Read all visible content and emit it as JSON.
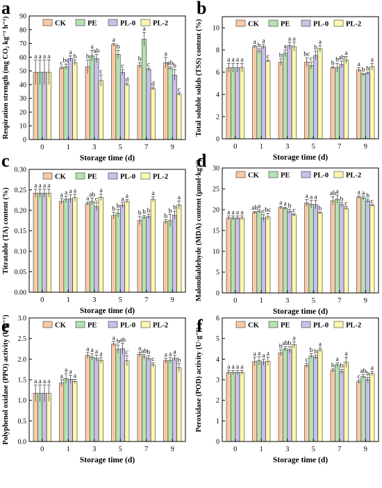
{
  "colors": {
    "CK": "#F9C9A6",
    "PE": "#B4E2B2",
    "PL-0": "#C9BFE8",
    "PL-2": "#FDF8AE",
    "stroke": "#333333"
  },
  "chart_data": [
    {
      "type": "bar",
      "panel": "a",
      "xlabel": "Storage time (d)",
      "ylabel": "Respiration strength (mg CO₂ kg⁻¹ h⁻¹)",
      "ylim": [
        0,
        90
      ],
      "yticks": [
        0,
        10,
        20,
        30,
        40,
        50,
        60,
        70,
        80,
        90
      ],
      "yticklabels": [
        "0",
        "10",
        "20",
        "30",
        "40",
        "50",
        "60",
        "70",
        "80",
        "90"
      ],
      "categories": [
        "0",
        "1",
        "3",
        "5",
        "7",
        "9"
      ],
      "legend": [
        "CK",
        "PE",
        "PL-0",
        "PL-2"
      ],
      "legend_position": "top",
      "series": [
        {
          "name": "CK",
          "values": [
            49,
            52,
            53,
            69,
            54,
            56
          ],
          "errors": [
            9,
            1,
            5,
            1,
            2,
            4
          ],
          "letters": [
            "a",
            "c",
            "b",
            "a",
            "b",
            "a"
          ]
        },
        {
          "name": "PE",
          "values": [
            49,
            53,
            61,
            62,
            73,
            52
          ],
          "errors": [
            9,
            2,
            4,
            3,
            5,
            1
          ],
          "letters": [
            "a",
            "bc",
            "a",
            "b",
            "a",
            "ab"
          ]
        },
        {
          "name": "PL-0",
          "values": [
            49,
            59,
            59,
            49,
            51,
            47
          ],
          "errors": [
            9,
            2,
            3,
            2,
            1,
            4
          ],
          "letters": [
            "a",
            "a",
            "ab",
            "c",
            "c",
            "b"
          ]
        },
        {
          "name": "PL-2",
          "values": [
            49,
            56,
            43,
            40,
            37,
            33
          ],
          "errors": [
            9,
            2,
            4,
            1,
            1,
            1
          ],
          "letters": [
            "a",
            "b",
            "c",
            "d",
            "d",
            "c"
          ]
        }
      ]
    },
    {
      "type": "bar",
      "panel": "b",
      "xlabel": "Storage time (d)",
      "ylabel": "Total soluble solids (TSS) content (%)",
      "ylim": [
        0,
        11
      ],
      "yticks": [
        0,
        2,
        4,
        6,
        8,
        10
      ],
      "yticklabels": [
        "0",
        "2",
        "4",
        "6",
        "8",
        "10"
      ],
      "categories": [
        "0",
        "1",
        "3",
        "5",
        "7",
        "9"
      ],
      "legend": [
        "CK",
        "PE",
        "PL-0",
        "PL-2"
      ],
      "legend_position": "top",
      "series": [
        {
          "name": "CK",
          "values": [
            6.4,
            8.3,
            6.9,
            6.9,
            6.4,
            6.2
          ],
          "errors": [
            0.4,
            0.1,
            0.3,
            0.4,
            0.1,
            0.2
          ],
          "letters": [
            "a",
            "a",
            "b",
            "bc",
            "b",
            "a"
          ]
        },
        {
          "name": "PE",
          "values": [
            6.4,
            7.9,
            7.7,
            6.6,
            6.4,
            5.8
          ],
          "errors": [
            0.4,
            0.2,
            0.3,
            0.3,
            0.4,
            0.1
          ],
          "letters": [
            "a",
            "b",
            "a",
            "c",
            "b",
            "b"
          ]
        },
        {
          "name": "PL-0",
          "values": [
            6.4,
            8.3,
            8.4,
            7.5,
            6.7,
            5.9
          ],
          "errors": [
            0.4,
            0.2,
            0.3,
            0.4,
            0.3,
            0.1
          ],
          "letters": [
            "a",
            "a",
            "a",
            "b",
            "ab",
            "b"
          ]
        },
        {
          "name": "PL-2",
          "values": [
            6.4,
            7.0,
            8.3,
            8.1,
            7.1,
            6.5
          ],
          "errors": [
            0.4,
            0.1,
            0.4,
            0.3,
            0.3,
            0.3
          ],
          "letters": [
            "a",
            "c",
            "a",
            "a",
            "a",
            "a"
          ]
        }
      ]
    },
    {
      "type": "bar",
      "panel": "c",
      "xlabel": "Storage time (d)",
      "ylabel": "Titratable (TA) content (%)",
      "ylim": [
        0,
        0.3
      ],
      "yticks": [
        0,
        0.05,
        0.1,
        0.15,
        0.2,
        0.25,
        0.3
      ],
      "yticklabels": [
        "0.00",
        "0.05",
        "0.10",
        "0.15",
        "0.20",
        "0.25",
        "0.30"
      ],
      "categories": [
        "0",
        "1",
        "3",
        "5",
        "7",
        "9"
      ],
      "legend": [
        "CK",
        "PE",
        "PL-0",
        "PL-2"
      ],
      "legend_position": "top",
      "series": [
        {
          "name": "CK",
          "values": [
            0.242,
            0.222,
            0.216,
            0.187,
            0.175,
            0.172
          ],
          "errors": [
            0.01,
            0.007,
            0.004,
            0.008,
            0.01,
            0.005
          ],
          "letters": [
            "a",
            "a",
            "a",
            "b",
            "b",
            "b"
          ]
        },
        {
          "name": "PE",
          "values": [
            0.242,
            0.227,
            0.222,
            0.193,
            0.183,
            0.175
          ],
          "errors": [
            0.01,
            0.008,
            0.008,
            0.009,
            0.004,
            0.015
          ],
          "letters": [
            "a",
            "a",
            "ab",
            "b",
            "b",
            "b"
          ]
        },
        {
          "name": "PL-0",
          "values": [
            0.242,
            0.228,
            0.209,
            0.213,
            0.185,
            0.188
          ],
          "errors": [
            0.01,
            0.01,
            0.01,
            0.006,
            0.006,
            0.01
          ],
          "letters": [
            "a",
            "a",
            "c",
            "a",
            "b",
            "b"
          ]
        },
        {
          "name": "PL-2",
          "values": [
            0.242,
            0.231,
            0.232,
            0.222,
            0.227,
            0.213
          ],
          "errors": [
            0.01,
            0.008,
            0.008,
            0.004,
            0.006,
            0.01
          ],
          "letters": [
            "a",
            "a",
            "a",
            "a",
            "a",
            "a"
          ]
        }
      ]
    },
    {
      "type": "bar",
      "panel": "d",
      "xlabel": "Storage time (d)",
      "ylabel": "Malondialdehyde (MDA) content (μmol·kg⁻¹)",
      "ylim": [
        0,
        30
      ],
      "yticks": [
        0,
        5,
        10,
        15,
        20,
        25,
        30
      ],
      "yticklabels": [
        "0",
        "5",
        "10",
        "15",
        "20",
        "25",
        "30"
      ],
      "categories": [
        "0",
        "1",
        "3",
        "5",
        "7",
        "9"
      ],
      "legend": [
        "CK",
        "PE",
        "PL-0",
        "PL-2"
      ],
      "legend_position": "top",
      "series": [
        {
          "name": "CK",
          "values": [
            18.0,
            19.3,
            20.5,
            21.6,
            22.1,
            23.0
          ],
          "errors": [
            0.5,
            0.3,
            0.3,
            0.8,
            1.0,
            0.3
          ],
          "letters": [
            "a",
            "ab",
            "a",
            "a",
            "ab",
            "a"
          ]
        },
        {
          "name": "PE",
          "values": [
            18.0,
            19.6,
            20.3,
            21.3,
            22.5,
            22.8
          ],
          "errors": [
            0.5,
            0.4,
            0.3,
            0.9,
            1.0,
            0.4
          ],
          "letters": [
            "a",
            "a",
            "a",
            "a",
            "a",
            "a"
          ]
        },
        {
          "name": "PL-0",
          "values": [
            18.0,
            18.0,
            19.6,
            21.2,
            21.2,
            22.1
          ],
          "errors": [
            0.5,
            0.8,
            0.5,
            1.0,
            0.5,
            0.4
          ],
          "letters": [
            "a",
            "c",
            "b",
            "a",
            "b",
            "b"
          ]
        },
        {
          "name": "PL-2",
          "values": [
            18.0,
            18.3,
            18.7,
            19.2,
            20.3,
            21.0
          ],
          "errors": [
            0.5,
            0.8,
            0.3,
            0.2,
            0.4,
            0.2
          ],
          "letters": [
            "a",
            "bc",
            "c",
            "b",
            "c",
            "c"
          ]
        }
      ]
    },
    {
      "type": "bar",
      "panel": "e",
      "xlabel": "Storage time (d)",
      "ylabel": "Polyphenol oxidase (PPO) activity (U·g⁻¹)",
      "ylim": [
        0,
        3.0
      ],
      "yticks": [
        0,
        0.5,
        1.0,
        1.5,
        2.0,
        2.5,
        3.0
      ],
      "yticklabels": [
        "0.0",
        "0.5",
        "1.0",
        "1.5",
        "2.0",
        "2.5",
        "3.0"
      ],
      "categories": [
        "0",
        "1",
        "3",
        "5",
        "7",
        "9"
      ],
      "legend": [
        "CK",
        "PE",
        "PL-0",
        "PL-2"
      ],
      "legend_position": "top",
      "series": [
        {
          "name": "CK",
          "values": [
            1.17,
            1.42,
            2.09,
            2.37,
            2.12,
            1.96
          ],
          "errors": [
            0.2,
            0.08,
            0.07,
            0.06,
            0.05,
            0.06
          ],
          "letters": [
            "a",
            "a",
            "a",
            "a",
            "a",
            "a"
          ]
        },
        {
          "name": "PE",
          "values": [
            1.17,
            1.53,
            2.05,
            2.24,
            2.06,
            1.97
          ],
          "errors": [
            0.2,
            0.12,
            0.08,
            0.1,
            0.05,
            0.07
          ],
          "letters": [
            "a",
            "a",
            "a",
            "b",
            "ab",
            "a"
          ]
        },
        {
          "name": "PL-0",
          "values": [
            1.17,
            1.51,
            2.02,
            2.25,
            2.02,
            2.02
          ],
          "errors": [
            0.2,
            0.1,
            0.08,
            0.13,
            0.06,
            0.07
          ],
          "letters": [
            "a",
            "a",
            "a",
            "ab",
            "b",
            "a"
          ]
        },
        {
          "name": "PL-2",
          "values": [
            1.17,
            1.46,
            1.97,
            1.96,
            1.86,
            1.79
          ],
          "errors": [
            0.2,
            0.05,
            0.07,
            0.12,
            0.05,
            0.1
          ],
          "letters": [
            "a",
            "a",
            "a",
            "c",
            "c",
            "b"
          ]
        }
      ]
    },
    {
      "type": "bar",
      "panel": "f",
      "xlabel": "Storage time (d)",
      "ylabel": "Peroxidase (POD) activity (U·g⁻¹)",
      "ylim": [
        0,
        6
      ],
      "yticks": [
        0,
        1,
        2,
        3,
        4,
        5,
        6
      ],
      "yticklabels": [
        "0",
        "1",
        "2",
        "3",
        "4",
        "5",
        "6"
      ],
      "categories": [
        "0",
        "1",
        "3",
        "5",
        "7",
        "9"
      ],
      "legend": [
        "CK",
        "PE",
        "PL-0",
        "PL-2"
      ],
      "legend_position": "top",
      "series": [
        {
          "name": "CK",
          "values": [
            3.35,
            3.88,
            4.3,
            3.7,
            3.45,
            2.9
          ],
          "errors": [
            0.1,
            0.2,
            0.15,
            0.1,
            0.08,
            0.08
          ],
          "letters": [
            "a",
            "a",
            "b",
            "c",
            "b",
            "c"
          ]
        },
        {
          "name": "PE",
          "values": [
            3.35,
            3.92,
            4.5,
            4.15,
            3.72,
            3.15
          ],
          "errors": [
            0.1,
            0.2,
            0.1,
            0.12,
            0.1,
            0.1
          ],
          "letters": [
            "a",
            "a",
            "ab",
            "b",
            "a",
            "ab"
          ]
        },
        {
          "name": "PL-0",
          "values": [
            3.35,
            3.85,
            4.45,
            4.1,
            3.4,
            3.0
          ],
          "errors": [
            0.1,
            0.15,
            0.15,
            0.1,
            0.1,
            0.12
          ],
          "letters": [
            "a",
            "a",
            "b",
            "b",
            "b",
            "b"
          ]
        },
        {
          "name": "PL-2",
          "values": [
            3.35,
            3.9,
            4.7,
            4.45,
            3.85,
            3.3
          ],
          "errors": [
            0.1,
            0.2,
            0.15,
            0.1,
            0.25,
            0.1
          ],
          "letters": [
            "a",
            "a",
            "a",
            "a",
            "a",
            "a"
          ]
        }
      ]
    }
  ]
}
